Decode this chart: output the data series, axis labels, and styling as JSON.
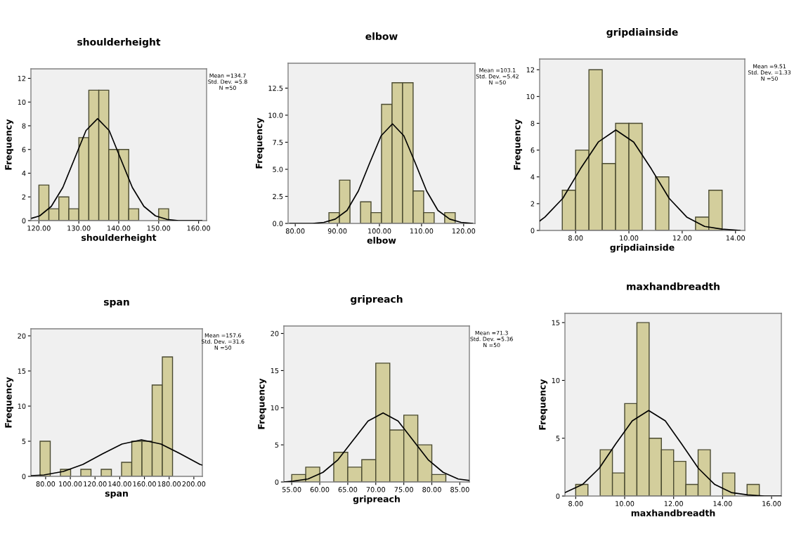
{
  "chart_data": [
    {
      "type": "histogram",
      "title": "shoulderheight",
      "xlabel": "shoulderheight",
      "ylabel": "Frequency",
      "color": "#d3ce9c",
      "bins": [
        120,
        122.5,
        125,
        127.5,
        130,
        132.5,
        135,
        137.5,
        140,
        142.5,
        145,
        147.5,
        150,
        152.5
      ],
      "values": [
        3,
        1,
        2,
        1,
        7,
        11,
        11,
        6,
        6,
        1,
        0,
        0,
        1
      ],
      "series": [
        {
          "type": "line",
          "color": "#000000",
          "x": [
            118.2,
            120.2,
            123.1,
            126.0,
            128.9,
            131.8,
            134.7,
            137.6,
            140.5,
            143.4,
            146.3,
            149.2,
            152.1,
            155.0,
            157.9,
            160.8
          ],
          "values": [
            0.2,
            0.4,
            1.2,
            2.8,
            5.2,
            7.6,
            8.6,
            7.6,
            5.2,
            2.8,
            1.2,
            0.4,
            0.1,
            0.0,
            0.0,
            0.0
          ]
        }
      ],
      "xlim": [
        118,
        162
      ],
      "ylim": [
        0,
        12.8
      ],
      "xticks": [
        {
          "value": 120,
          "label": "120.00"
        },
        {
          "value": 130,
          "label": "130.00"
        },
        {
          "value": 140,
          "label": "140.00"
        },
        {
          "value": 150,
          "label": "150.00"
        },
        {
          "value": 160,
          "label": "160.00"
        }
      ],
      "yticks": [
        0,
        2,
        4,
        6,
        8,
        10,
        12
      ],
      "annotations": [
        "Mean =134.7\nStd. Dev. =5.8\nN =50"
      ]
    },
    {
      "type": "histogram",
      "title": "elbow",
      "xlabel": "elbow",
      "ylabel": "Frequency",
      "color": "#d3ce9c",
      "bins": [
        88,
        90.5,
        93,
        95.5,
        98,
        100.5,
        103,
        105.5,
        108,
        110.5,
        113,
        115.5,
        118
      ],
      "values": [
        1,
        4,
        0,
        2,
        1,
        11,
        13,
        13,
        3,
        1,
        0,
        1
      ],
      "series": [
        {
          "type": "line",
          "color": "#000000",
          "x": [
            78.7,
            81.4,
            84.1,
            86.8,
            89.5,
            92.3,
            95.0,
            97.7,
            100.4,
            103.1,
            105.8,
            108.5,
            111.2,
            113.9,
            116.7,
            119.4,
            122.1
          ],
          "values": [
            0.0,
            0.0,
            0.0,
            0.1,
            0.4,
            1.2,
            3.0,
            5.6,
            8.1,
            9.2,
            8.1,
            5.6,
            3.0,
            1.2,
            0.4,
            0.1,
            0.0
          ]
        }
      ],
      "xlim": [
        78.3,
        122.7
      ],
      "ylim": [
        0,
        14.8
      ],
      "xticks": [
        {
          "value": 80,
          "label": "80.00"
        },
        {
          "value": 90,
          "label": "90.00"
        },
        {
          "value": 100,
          "label": "100.00"
        },
        {
          "value": 110,
          "label": "110.00"
        },
        {
          "value": 120,
          "label": "120.00"
        }
      ],
      "yticks": [
        {
          "value": 0,
          "label": "0.0"
        },
        2.5,
        {
          "value": 5,
          "label": "5.0"
        },
        7.5,
        {
          "value": 10,
          "label": "10.0"
        },
        12.5
      ],
      "annotations": [
        "Mean =103.1\nStd. Dev. =5.42\nN =50"
      ]
    },
    {
      "type": "histogram",
      "title": "gripdiainside",
      "xlabel": "gripdiainside",
      "ylabel": "Frequency",
      "color": "#d3ce9c",
      "bins": [
        7.5,
        8,
        8.5,
        9,
        9.5,
        10,
        10.5,
        11,
        11.5,
        12,
        12.5,
        13,
        13.5
      ],
      "values": [
        3,
        6,
        12,
        5,
        8,
        8,
        0,
        4,
        0,
        0,
        1,
        3
      ],
      "series": [
        {
          "type": "line",
          "color": "#000000",
          "x": [
            6.65,
            6.85,
            7.52,
            8.18,
            8.85,
            9.51,
            10.18,
            10.84,
            11.51,
            12.17,
            12.84,
            13.5,
            14.17
          ],
          "values": [
            0.7,
            1.0,
            2.4,
            4.6,
            6.6,
            7.5,
            6.6,
            4.6,
            2.4,
            1.0,
            0.3,
            0.1,
            0.0
          ]
        }
      ],
      "xlim": [
        6.65,
        14.35
      ],
      "ylim": [
        0,
        12.8
      ],
      "xticks": [
        {
          "value": 8,
          "label": "8.00"
        },
        {
          "value": 10,
          "label": "10.00"
        },
        {
          "value": 12,
          "label": "12.00"
        },
        {
          "value": 14,
          "label": "14.00"
        }
      ],
      "yticks": [
        0,
        2,
        4,
        6,
        8,
        10,
        12
      ],
      "annotations": [
        "Mean =9.51\nStd. Dev. =1.33\nN =50"
      ]
    },
    {
      "type": "histogram",
      "title": "span",
      "xlabel": "span",
      "ylabel": "Frequency",
      "color": "#d3ce9c",
      "bins": [
        75.5,
        83.75,
        92,
        100.25,
        108.5,
        116.75,
        125,
        133.25,
        141.5,
        149.75,
        158,
        166.25,
        174.5,
        182.75
      ],
      "values": [
        5,
        0,
        1,
        0,
        1,
        0,
        1,
        0,
        2,
        5,
        5,
        13,
        17
      ],
      "series": [
        {
          "type": "line",
          "color": "#000000",
          "x": [
            68.2,
            78.6,
            94.4,
            110.2,
            126.0,
            141.8,
            157.6,
            173.4,
            189.2,
            205.0,
            206.9
          ],
          "values": [
            0.1,
            0.2,
            0.7,
            1.7,
            3.2,
            4.6,
            5.2,
            4.6,
            3.2,
            1.7,
            1.6
          ]
        }
      ],
      "xlim": [
        68.1,
        206.9
      ],
      "ylim": [
        0,
        21
      ],
      "xticks": [
        {
          "value": 80,
          "label": "80.00"
        },
        {
          "value": 100,
          "label": "100.00"
        },
        {
          "value": 120,
          "label": "120.00"
        },
        {
          "value": 140,
          "label": "140.00"
        },
        {
          "value": 160,
          "label": "160.00"
        },
        {
          "value": 180,
          "label": "180.00"
        },
        {
          "value": 200,
          "label": "200.00"
        }
      ],
      "yticks": [
        0,
        5,
        10,
        15,
        20
      ],
      "annotations": [
        "Mean =157.6\nStd. Dev. =31.6\nN =50"
      ]
    },
    {
      "type": "histogram",
      "title": "gripreach",
      "xlabel": "gripreach",
      "ylabel": "Frequency",
      "color": "#d3ce9c",
      "bins": [
        55,
        57.5,
        60,
        62.5,
        65,
        67.5,
        70,
        72.5,
        75,
        77.5,
        80,
        82.5
      ],
      "values": [
        1,
        2,
        0,
        4,
        2,
        3,
        16,
        7,
        9,
        5,
        1
      ],
      "series": [
        {
          "type": "line",
          "color": "#000000",
          "x": [
            53.6,
            55.22,
            57.9,
            60.58,
            63.26,
            65.94,
            68.62,
            71.3,
            73.98,
            76.66,
            79.34,
            82.02,
            84.7,
            86.7
          ],
          "values": [
            0.0,
            0.1,
            0.4,
            1.3,
            3.0,
            5.6,
            8.2,
            9.3,
            8.2,
            5.6,
            3.0,
            1.3,
            0.4,
            0.2
          ]
        }
      ],
      "xlim": [
        53.6,
        86.7
      ],
      "ylim": [
        0,
        21
      ],
      "xticks": [
        {
          "value": 55,
          "label": "55.00"
        },
        {
          "value": 60,
          "label": "60.00"
        },
        {
          "value": 65,
          "label": "65.00"
        },
        {
          "value": 70,
          "label": "70.00"
        },
        {
          "value": 75,
          "label": "75.00"
        },
        {
          "value": 80,
          "label": "80.00"
        },
        {
          "value": 85,
          "label": "85.00"
        }
      ],
      "yticks": [
        0,
        5,
        10,
        15,
        20
      ],
      "annotations": [
        "Mean =71.3\nStd. Dev. =5.36\nN =50"
      ]
    },
    {
      "type": "histogram",
      "title": "maxhandbreadth",
      "xlabel": "maxhandbreadth",
      "ylabel": "Frequency",
      "color": "#d3ce9c",
      "bins": [
        8,
        8.5,
        9,
        9.5,
        10,
        10.5,
        11,
        11.5,
        12,
        12.5,
        13,
        13.5,
        14,
        14.5,
        15,
        15.5
      ],
      "values": [
        1,
        0,
        4,
        2,
        8,
        15,
        5,
        4,
        3,
        1,
        4,
        0,
        2,
        0,
        1
      ],
      "series": [
        {
          "type": "line",
          "color": "#000000",
          "x": [
            7.56,
            8.28,
            8.96,
            9.63,
            10.31,
            10.98,
            11.66,
            12.33,
            13.01,
            13.68,
            14.36,
            15.03,
            15.71,
            16.38
          ],
          "values": [
            0.3,
            1.0,
            2.4,
            4.5,
            6.5,
            7.4,
            6.5,
            4.5,
            2.4,
            1.0,
            0.3,
            0.1,
            0.0,
            0.0
          ]
        }
      ],
      "xlim": [
        7.56,
        16.4
      ],
      "ylim": [
        0,
        15.8
      ],
      "xticks": [
        {
          "value": 8,
          "label": "8.00"
        },
        {
          "value": 10,
          "label": "10.00"
        },
        {
          "value": 12,
          "label": "12.00"
        },
        {
          "value": 14,
          "label": "14.00"
        },
        {
          "value": 16,
          "label": "16.00"
        }
      ],
      "yticks": [
        0,
        5,
        10,
        15
      ]
    }
  ]
}
